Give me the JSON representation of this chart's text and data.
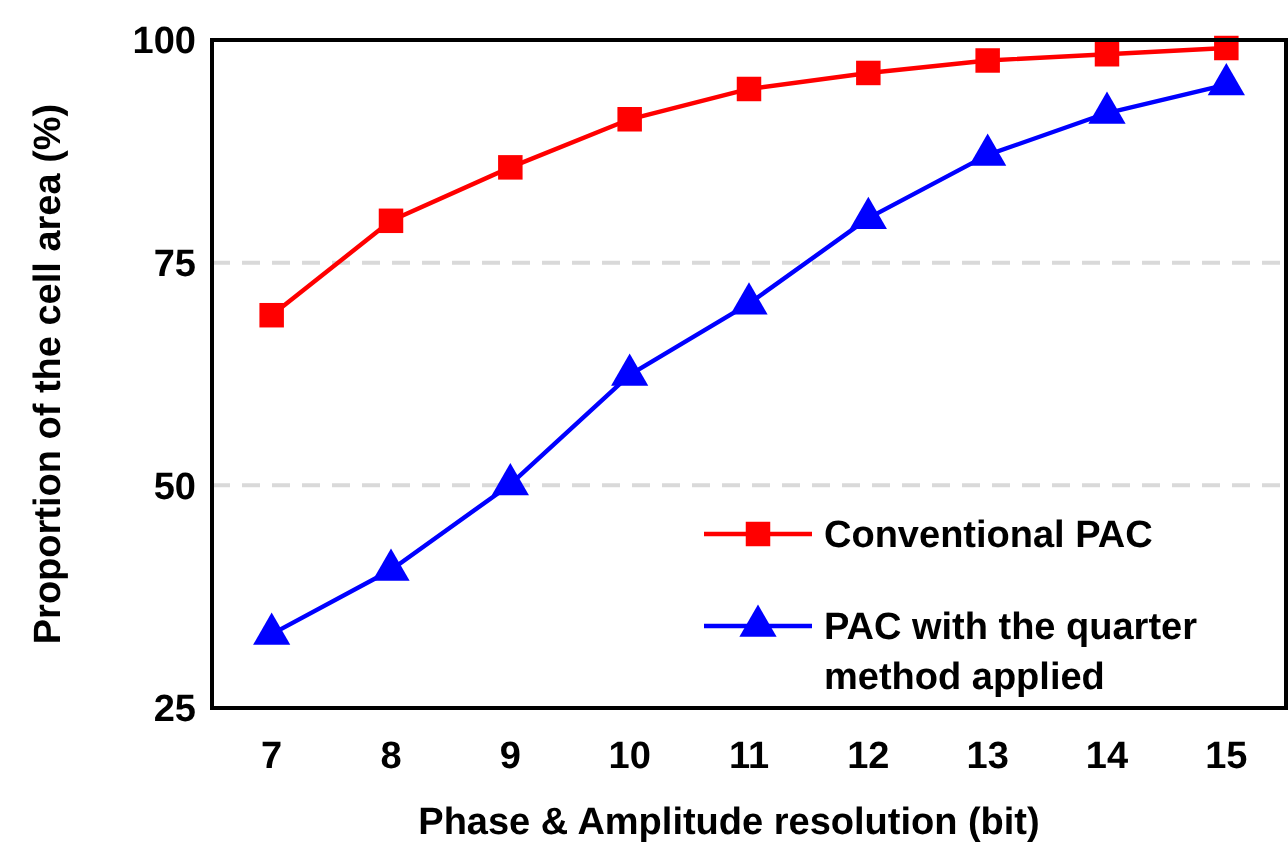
{
  "chart_data": {
    "type": "line",
    "xlabel": "Phase & Amplitude resolution (bit)",
    "ylabel": "Proportion of the cell area (%)",
    "x": [
      7,
      8,
      9,
      10,
      11,
      12,
      13,
      14,
      15
    ],
    "series": [
      {
        "name": "Conventional PAC",
        "color": "#ff0000",
        "marker": "square",
        "values": [
          69.1,
          79.7,
          85.7,
          91.1,
          94.5,
          96.3,
          97.7,
          98.4,
          99.1
        ]
      },
      {
        "name": "PAC with the quarter method applied",
        "color": "#0000ff",
        "marker": "triangle",
        "values": [
          33.3,
          40.5,
          50.1,
          62.4,
          70.4,
          80.0,
          87.1,
          91.8,
          95.0
        ]
      }
    ],
    "xlim": [
      6.5,
      15.5
    ],
    "xticks": [
      7,
      8,
      9,
      10,
      11,
      12,
      13,
      14,
      15
    ],
    "ylim": [
      25,
      100
    ],
    "yticks": [
      25,
      50,
      75,
      100
    ],
    "grid": "y",
    "legend": "bottom right",
    "line_style": "solid"
  }
}
